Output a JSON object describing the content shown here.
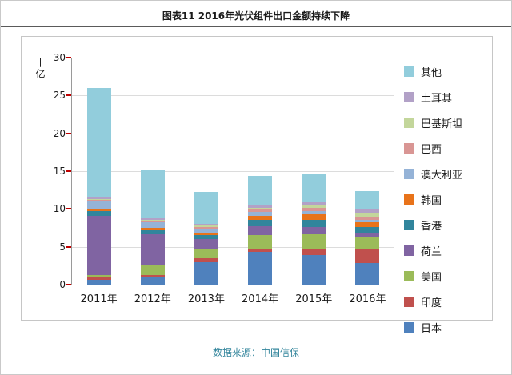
{
  "page": {
    "title": "图表11 2016年光伏组件出口金额持续下降",
    "footer": "数据来源：中国信保"
  },
  "chart_data": {
    "type": "bar",
    "stacked": true,
    "title": "图表11 2016年光伏组件出口金额持续下降",
    "ylabel": "十亿",
    "xlabel": "",
    "ylim": [
      0,
      30
    ],
    "yticks": [
      0,
      5,
      10,
      15,
      20,
      25,
      30
    ],
    "grid": true,
    "legend_position": "right",
    "categories": [
      "2011年",
      "2012年",
      "2013年",
      "2014年",
      "2015年",
      "2016年"
    ],
    "series": [
      {
        "name": "日本",
        "color": "#4F81BD",
        "values": [
          0.6,
          1.0,
          3.0,
          4.3,
          3.9,
          2.9
        ]
      },
      {
        "name": "印度",
        "color": "#C0504D",
        "values": [
          0.4,
          0.3,
          0.5,
          0.4,
          0.9,
          1.9
        ]
      },
      {
        "name": "美国",
        "color": "#9BBB59",
        "values": [
          0.3,
          1.2,
          1.3,
          1.8,
          1.9,
          1.4
        ]
      },
      {
        "name": "荷兰",
        "color": "#8064A2",
        "values": [
          7.8,
          4.2,
          1.2,
          1.2,
          0.9,
          0.6
        ]
      },
      {
        "name": "香港",
        "color": "#31859C",
        "values": [
          0.6,
          0.5,
          0.6,
          0.9,
          1.0,
          0.8
        ]
      },
      {
        "name": "韩国",
        "color": "#E8731A",
        "values": [
          0.3,
          0.3,
          0.3,
          0.5,
          0.7,
          0.6
        ]
      },
      {
        "name": "澳大利亚",
        "color": "#95B3D7",
        "values": [
          1.0,
          0.8,
          0.5,
          0.5,
          0.4,
          0.4
        ]
      },
      {
        "name": "巴西",
        "color": "#D99694",
        "values": [
          0.2,
          0.2,
          0.2,
          0.3,
          0.4,
          0.4
        ]
      },
      {
        "name": "巴基斯坦",
        "color": "#C3D69B",
        "values": [
          0.1,
          0.1,
          0.2,
          0.3,
          0.4,
          0.5
        ]
      },
      {
        "name": "土耳其",
        "color": "#B2A1C7",
        "values": [
          0.2,
          0.2,
          0.2,
          0.3,
          0.4,
          0.4
        ]
      },
      {
        "name": "其他",
        "color": "#92CDDC",
        "values": [
          14.5,
          6.3,
          4.3,
          3.9,
          3.8,
          2.5
        ]
      }
    ],
    "totals": [
      26.0,
      15.1,
      12.3,
      14.4,
      14.7,
      12.4
    ]
  }
}
